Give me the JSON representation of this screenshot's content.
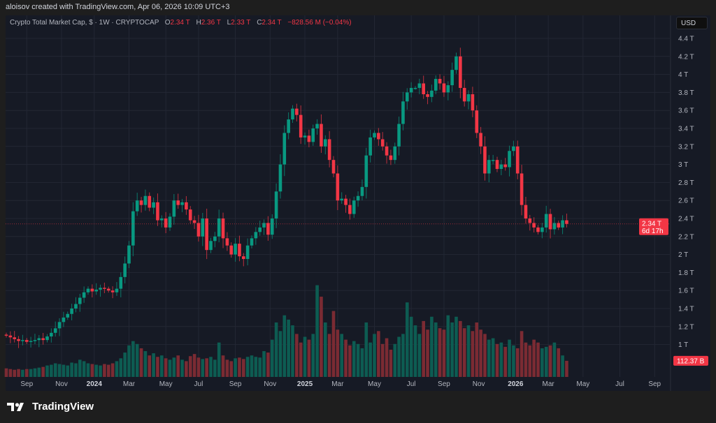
{
  "header": {
    "credit": "aloisov created with TradingView.com, Apr 06, 2026 10:09 UTC+3"
  },
  "legend": {
    "symbol": "Crypto Total Market Cap, $ · 1W · CRYPTOCAP",
    "o_label": "O",
    "o": "2.34 T",
    "h_label": "H",
    "h": "2.36 T",
    "l_label": "L",
    "l": "2.33 T",
    "c_label": "C",
    "c": "2.34 T",
    "change": "−828.56 M (−0.04%)"
  },
  "currency": "USD",
  "footer": {
    "brand": "TradingView"
  },
  "colors": {
    "up": "#089981",
    "down": "#f23645",
    "up_volume": "#0d5c52",
    "down_volume": "#7b2b33",
    "background": "#161a25",
    "grid": "#232734"
  },
  "chart_data": {
    "type": "candlestick",
    "title": "Crypto Total Market Cap, $ · 1W · CRYPTOCAP",
    "ylabel": "USD",
    "ylim": [
      0.9,
      4.45
    ],
    "y_ticks": [
      {
        "v": 4.4,
        "label": "4.4 T"
      },
      {
        "v": 4.2,
        "label": "4.2 T"
      },
      {
        "v": 4.0,
        "label": "4 T"
      },
      {
        "v": 3.8,
        "label": "3.8 T"
      },
      {
        "v": 3.6,
        "label": "3.6 T"
      },
      {
        "v": 3.4,
        "label": "3.4 T"
      },
      {
        "v": 3.2,
        "label": "3.2 T"
      },
      {
        "v": 3.0,
        "label": "3 T"
      },
      {
        "v": 2.8,
        "label": "2.8 T"
      },
      {
        "v": 2.6,
        "label": "2.6 T"
      },
      {
        "v": 2.4,
        "label": "2.4 T"
      },
      {
        "v": 2.2,
        "label": "2.2 T"
      },
      {
        "v": 2.0,
        "label": "2 T"
      },
      {
        "v": 1.8,
        "label": "1.8 T"
      },
      {
        "v": 1.6,
        "label": "1.6 T"
      },
      {
        "v": 1.4,
        "label": "1.4 T"
      },
      {
        "v": 1.2,
        "label": "1.2 T"
      },
      {
        "v": 1.0,
        "label": "1 T"
      }
    ],
    "x_ticks": [
      {
        "w": 5,
        "label": "Sep",
        "bold": false
      },
      {
        "w": 13.5,
        "label": "Nov",
        "bold": false
      },
      {
        "w": 21.5,
        "label": "2024",
        "bold": true
      },
      {
        "w": 30,
        "label": "Mar",
        "bold": false
      },
      {
        "w": 39,
        "label": "May",
        "bold": false
      },
      {
        "w": 47,
        "label": "Jul",
        "bold": false
      },
      {
        "w": 56,
        "label": "Sep",
        "bold": false
      },
      {
        "w": 64.5,
        "label": "Nov",
        "bold": false
      },
      {
        "w": 73,
        "label": "2025",
        "bold": true
      },
      {
        "w": 81,
        "label": "Mar",
        "bold": false
      },
      {
        "w": 90,
        "label": "May",
        "bold": false
      },
      {
        "w": 99,
        "label": "Jul",
        "bold": false
      },
      {
        "w": 107,
        "label": "Sep",
        "bold": false
      },
      {
        "w": 115.5,
        "label": "Nov",
        "bold": false
      },
      {
        "w": 124.5,
        "label": "2026",
        "bold": true
      },
      {
        "w": 132.5,
        "label": "Mar",
        "bold": false
      },
      {
        "w": 141,
        "label": "May",
        "bold": false
      },
      {
        "w": 150,
        "label": "Jul",
        "bold": false
      },
      {
        "w": 158.5,
        "label": "Sep",
        "bold": false
      }
    ],
    "close_T": [
      1.1,
      1.08,
      1.06,
      1.04,
      1.05,
      1.03,
      1.04,
      1.05,
      1.07,
      1.05,
      1.09,
      1.13,
      1.18,
      1.25,
      1.3,
      1.34,
      1.4,
      1.45,
      1.52,
      1.58,
      1.62,
      1.59,
      1.61,
      1.63,
      1.62,
      1.6,
      1.58,
      1.62,
      1.75,
      1.9,
      2.1,
      2.48,
      2.6,
      2.55,
      2.65,
      2.52,
      2.58,
      2.38,
      2.4,
      2.3,
      2.42,
      2.6,
      2.55,
      2.58,
      2.5,
      2.38,
      2.35,
      2.2,
      2.4,
      2.05,
      2.15,
      2.2,
      2.4,
      2.18,
      2.1,
      2.0,
      2.12,
      1.98,
      1.95,
      2.1,
      2.18,
      2.25,
      2.3,
      2.35,
      2.22,
      2.4,
      2.7,
      3.0,
      3.35,
      3.5,
      3.62,
      3.55,
      3.3,
      3.32,
      3.25,
      3.4,
      3.45,
      3.2,
      3.28,
      3.05,
      2.9,
      2.6,
      2.62,
      2.55,
      2.45,
      2.6,
      2.65,
      2.75,
      3.1,
      3.3,
      3.35,
      3.28,
      3.2,
      3.1,
      3.05,
      3.2,
      3.45,
      3.7,
      3.8,
      3.85,
      3.85,
      3.9,
      3.78,
      3.75,
      3.82,
      3.95,
      3.9,
      3.8,
      3.88,
      4.05,
      4.2,
      3.85,
      3.7,
      3.78,
      3.6,
      3.35,
      3.2,
      2.9,
      3.05,
      3.05,
      2.95,
      3.0,
      2.97,
      3.15,
      3.2,
      2.9,
      2.55,
      2.4,
      2.35,
      2.3,
      2.25,
      2.3,
      2.45,
      2.28,
      2.35,
      2.3,
      2.38,
      2.34
    ],
    "volume_B": [
      60,
      55,
      50,
      55,
      50,
      55,
      55,
      60,
      65,
      70,
      80,
      85,
      95,
      90,
      85,
      80,
      100,
      95,
      120,
      110,
      95,
      90,
      85,
      80,
      90,
      85,
      95,
      110,
      130,
      170,
      220,
      250,
      230,
      200,
      180,
      150,
      165,
      140,
      150,
      130,
      120,
      135,
      150,
      120,
      110,
      145,
      160,
      135,
      125,
      130,
      140,
      120,
      240,
      150,
      120,
      110,
      130,
      135,
      125,
      140,
      150,
      140,
      135,
      180,
      170,
      260,
      380,
      320,
      430,
      400,
      360,
      300,
      240,
      280,
      260,
      300,
      640,
      560,
      380,
      300,
      460,
      330,
      300,
      260,
      220,
      250,
      230,
      200,
      380,
      240,
      300,
      320,
      230,
      270,
      190,
      230,
      280,
      300,
      520,
      420,
      360,
      300,
      390,
      330,
      420,
      380,
      340,
      330,
      430,
      380,
      420,
      390,
      340,
      360,
      320,
      380,
      330,
      300,
      260,
      270,
      230,
      240,
      210,
      260,
      220,
      200,
      320,
      240,
      220,
      260,
      240,
      200,
      210,
      220,
      240,
      200,
      150,
      112.37
    ],
    "last_price": {
      "value": 2.34,
      "label": "2.34 T",
      "countdown": "6d 17h"
    },
    "last_volume": {
      "value": 112.37,
      "label": "112.37 B"
    }
  }
}
